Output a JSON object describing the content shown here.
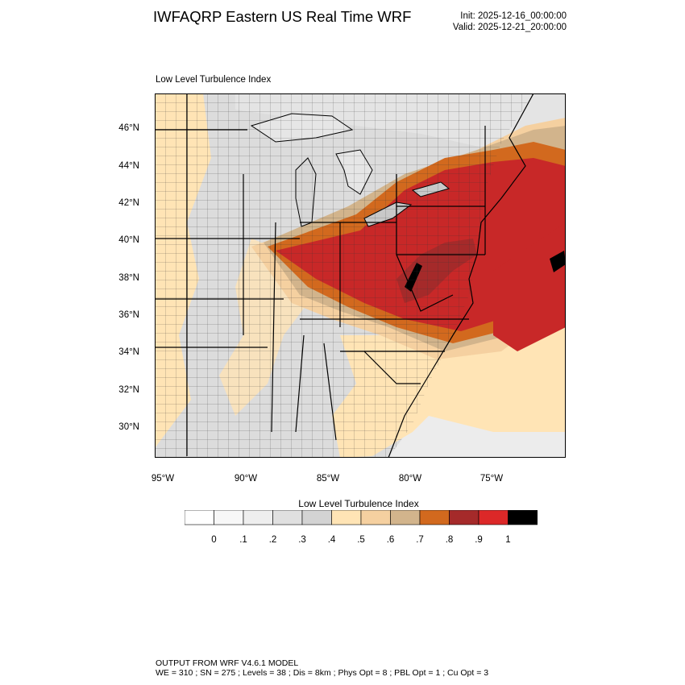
{
  "title": "IWFAQRP Eastern US Real Time WRF",
  "init_time": "Init: 2025-12-16_00:00:00",
  "valid_time": "Valid: 2025-12-21_20:00:00",
  "plot_label": "Low Level Turbulence Index",
  "map": {
    "latitude_labels": [
      "46°N",
      "44°N",
      "42°N",
      "40°N",
      "38°N",
      "36°N",
      "34°N",
      "32°N",
      "30°N"
    ],
    "longitude_labels": [
      "95°W",
      "90°W",
      "85°W",
      "80°W",
      "75°W"
    ],
    "colors": {
      "land_gray": "#dcdcdc",
      "light_tan": "#ffe4b5",
      "tan": "#f5d0a0",
      "brown_tan": "#d2b48c",
      "orange": "#d2691e",
      "red": "#c82828",
      "dark_red": "#a52a2a",
      "black": "#000000",
      "lake_gray": "#e6e6e6"
    }
  },
  "colorbar": {
    "title": "Low Level Turbulence Index",
    "tick_labels": [
      "0",
      ".1",
      ".2",
      ".3",
      ".4",
      ".5",
      ".6",
      ".7",
      ".8",
      ".9",
      "1"
    ],
    "colors": [
      "#ffffff",
      "#f7f7f7",
      "#eeeeee",
      "#e0e0e0",
      "#d3d3d3",
      "#ffe4b5",
      "#f5d0a0",
      "#d2b48c",
      "#d2691e",
      "#a52a2a",
      "#dc2828",
      "#000000"
    ]
  },
  "footer": {
    "line1": "OUTPUT FROM WRF V4.6.1 MODEL",
    "line2": "WE = 310 ; SN = 275 ; Levels = 38 ; Dis = 8km ; Phys Opt = 8 ; PBL Opt = 1 ; Cu Opt = 3"
  }
}
